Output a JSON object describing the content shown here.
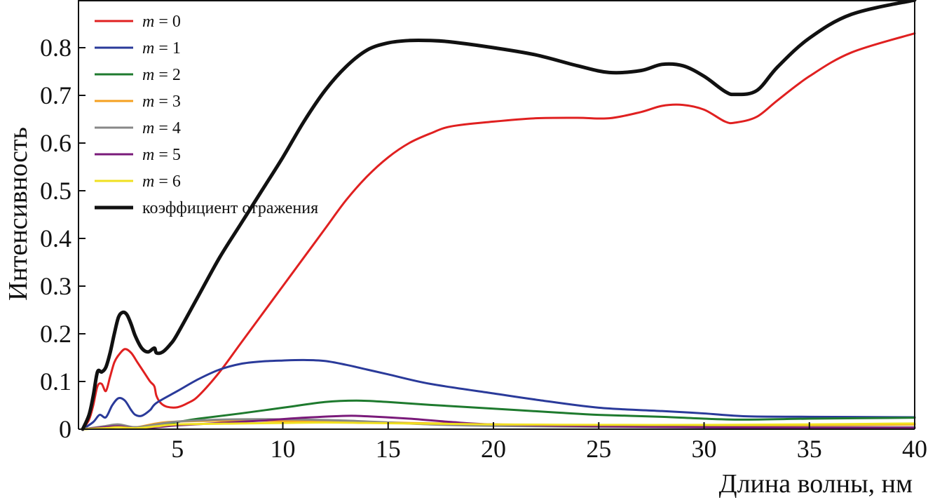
{
  "chart_data": {
    "type": "line",
    "title": "",
    "xlabel": "Длина волны, нм",
    "ylabel": "Интенсивность",
    "xlim": [
      0.3,
      40
    ],
    "ylim": [
      0,
      0.9
    ],
    "xticks": [
      "5",
      "10",
      "15",
      "20",
      "25",
      "30",
      "35",
      "40"
    ],
    "yticks": [
      "0",
      "0.1",
      "0.2",
      "0.3",
      "0.4",
      "0.5",
      "0.6",
      "0.7",
      "0.8"
    ],
    "grid": false,
    "legend_position": "top-left",
    "series": [
      {
        "name": "m = 0",
        "legend_var": "m",
        "legend_val": "= 0",
        "color": "#e02020",
        "x": [
          0.5,
          0.8,
          1.0,
          1.2,
          1.4,
          1.6,
          1.8,
          2.0,
          2.2,
          2.5,
          2.8,
          3.1,
          3.4,
          3.7,
          3.9,
          4.0,
          4.2,
          4.5,
          5.0,
          5.5,
          6.0,
          7.0,
          8.0,
          9.0,
          10.0,
          11.0,
          12.0,
          13.0,
          14.0,
          15.0,
          16.0,
          17.0,
          18.0,
          20.0,
          22.0,
          24.0,
          25.5,
          27.0,
          28.0,
          29.0,
          30.0,
          31.0,
          31.5,
          32.5,
          33.5,
          35.0,
          37.0,
          40.0
        ],
        "y": [
          0.0,
          0.02,
          0.05,
          0.09,
          0.095,
          0.08,
          0.11,
          0.14,
          0.155,
          0.168,
          0.16,
          0.14,
          0.12,
          0.1,
          0.09,
          0.07,
          0.055,
          0.047,
          0.046,
          0.055,
          0.07,
          0.12,
          0.18,
          0.24,
          0.3,
          0.36,
          0.42,
          0.48,
          0.53,
          0.57,
          0.6,
          0.62,
          0.635,
          0.645,
          0.652,
          0.653,
          0.652,
          0.665,
          0.678,
          0.68,
          0.67,
          0.645,
          0.643,
          0.655,
          0.69,
          0.74,
          0.79,
          0.83
        ]
      },
      {
        "name": "m = 1",
        "legend_var": "m",
        "legend_val": "= 1",
        "color": "#2a3a9a",
        "x": [
          0.5,
          1.0,
          1.3,
          1.6,
          1.9,
          2.2,
          2.5,
          2.8,
          3.0,
          3.3,
          3.7,
          4.0,
          5.0,
          6.0,
          7.0,
          8.0,
          9.0,
          10.0,
          11.0,
          12.0,
          13.0,
          14.0,
          15.0,
          17.0,
          20.0,
          22.0,
          25.0,
          28.0,
          30.0,
          32.0,
          35.0,
          40.0
        ],
        "y": [
          0.0,
          0.015,
          0.03,
          0.025,
          0.05,
          0.065,
          0.06,
          0.04,
          0.03,
          0.028,
          0.04,
          0.055,
          0.08,
          0.105,
          0.125,
          0.137,
          0.142,
          0.144,
          0.145,
          0.143,
          0.135,
          0.125,
          0.115,
          0.095,
          0.075,
          0.062,
          0.045,
          0.038,
          0.033,
          0.027,
          0.026,
          0.025
        ]
      },
      {
        "name": "m = 2",
        "legend_var": "m",
        "legend_val": "= 2",
        "color": "#1e7a2e",
        "x": [
          0.5,
          1.5,
          2.2,
          3.0,
          4.0,
          5.0,
          6.0,
          8.0,
          10.0,
          12.0,
          13.5,
          15.0,
          17.0,
          20.0,
          23.0,
          25.0,
          28.0,
          30.0,
          32.0,
          35.0,
          40.0
        ],
        "y": [
          0.0,
          0.003,
          0.008,
          0.004,
          0.008,
          0.015,
          0.022,
          0.033,
          0.045,
          0.057,
          0.06,
          0.057,
          0.051,
          0.043,
          0.035,
          0.03,
          0.026,
          0.022,
          0.02,
          0.022,
          0.024
        ]
      },
      {
        "name": "m = 3",
        "legend_var": "m",
        "legend_val": "= 3",
        "color": "#f5a020",
        "x": [
          0.5,
          1.5,
          2.2,
          3.0,
          4.0,
          5.0,
          8.0,
          10.0,
          12.0,
          14.0,
          16.0,
          20.0,
          25.0,
          30.0,
          32.0,
          35.0,
          40.0
        ],
        "y": [
          0.0,
          0.004,
          0.007,
          0.004,
          0.012,
          0.016,
          0.018,
          0.017,
          0.016,
          0.015,
          0.013,
          0.01,
          0.008,
          0.007,
          0.006,
          0.008,
          0.01
        ]
      },
      {
        "name": "m = 4",
        "legend_var": "m",
        "legend_val": "= 4",
        "color": "#888888",
        "x": [
          0.5,
          1.5,
          2.2,
          3.0,
          4.0,
          5.0,
          7.0,
          9.0,
          11.0,
          13.0,
          15.0,
          17.0,
          20.0,
          25.0,
          30.0,
          35.0,
          40.0
        ],
        "y": [
          0.0,
          0.006,
          0.01,
          0.004,
          0.01,
          0.016,
          0.02,
          0.021,
          0.02,
          0.018,
          0.014,
          0.01,
          0.007,
          0.005,
          0.004,
          0.004,
          0.004
        ]
      },
      {
        "name": "m = 5",
        "legend_var": "m",
        "legend_val": "= 5",
        "color": "#7a1a7a",
        "x": [
          0.5,
          1.5,
          2.2,
          3.0,
          4.0,
          5.0,
          7.0,
          9.0,
          11.0,
          13.0,
          14.0,
          16.0,
          18.0,
          20.0,
          25.0,
          30.0,
          35.0,
          40.0
        ],
        "y": [
          0.0,
          0.004,
          0.006,
          0.002,
          0.004,
          0.008,
          0.013,
          0.018,
          0.024,
          0.028,
          0.027,
          0.022,
          0.015,
          0.01,
          0.006,
          0.004,
          0.003,
          0.003
        ]
      },
      {
        "name": "m = 6",
        "legend_var": "m",
        "legend_val": "= 6",
        "color": "#f0e020",
        "x": [
          0.5,
          1.5,
          2.2,
          3.0,
          4.0,
          5.0,
          8.0,
          10.0,
          12.0,
          14.0,
          16.0,
          20.0,
          25.0,
          30.0,
          35.0,
          40.0
        ],
        "y": [
          0.0,
          0.002,
          0.004,
          0.002,
          0.006,
          0.01,
          0.012,
          0.013,
          0.014,
          0.013,
          0.012,
          0.01,
          0.009,
          0.009,
          0.01,
          0.012
        ]
      },
      {
        "name": "коэффициент отражения",
        "legend_var": "",
        "legend_val": "коэффициент отражения",
        "color": "#111111",
        "thick": true,
        "x": [
          0.5,
          0.8,
          1.0,
          1.2,
          1.4,
          1.6,
          1.8,
          2.0,
          2.2,
          2.4,
          2.6,
          2.8,
          3.0,
          3.3,
          3.6,
          3.9,
          4.0,
          4.3,
          4.7,
          5.0,
          6.0,
          7.0,
          8.0,
          9.0,
          10.0,
          11.0,
          12.0,
          13.0,
          14.0,
          15.0,
          16.0,
          17.0,
          18.0,
          20.0,
          22.0,
          24.0,
          25.5,
          27.0,
          28.0,
          29.0,
          30.0,
          31.0,
          31.5,
          32.5,
          33.5,
          35.0,
          37.0,
          40.0
        ],
        "y": [
          0.0,
          0.03,
          0.07,
          0.12,
          0.12,
          0.13,
          0.16,
          0.2,
          0.235,
          0.245,
          0.24,
          0.22,
          0.195,
          0.17,
          0.162,
          0.17,
          0.16,
          0.162,
          0.18,
          0.2,
          0.28,
          0.36,
          0.43,
          0.5,
          0.57,
          0.645,
          0.71,
          0.76,
          0.795,
          0.81,
          0.815,
          0.815,
          0.812,
          0.8,
          0.785,
          0.762,
          0.748,
          0.752,
          0.765,
          0.762,
          0.74,
          0.708,
          0.702,
          0.71,
          0.76,
          0.82,
          0.87,
          0.9
        ]
      }
    ]
  }
}
